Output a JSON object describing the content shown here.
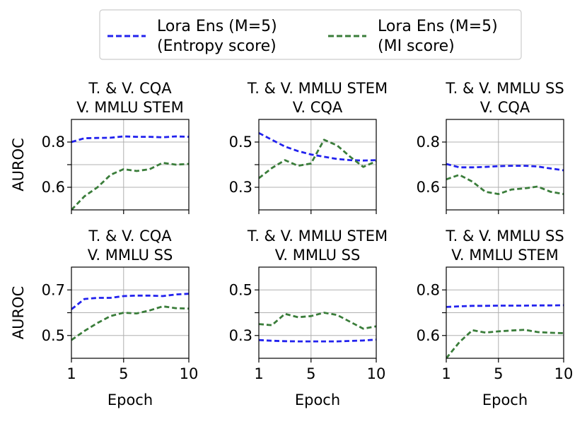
{
  "legend": {
    "placement": "top-center, above subplots",
    "entries": [
      {
        "line1": "Lora Ens (M=5)",
        "line2": "(Entropy score)",
        "color": "#2222ee",
        "style": "dashed"
      },
      {
        "line1": "Lora Ens (M=5)",
        "line2": "(MI score)",
        "color": "#3a7d3a",
        "style": "dashed"
      }
    ]
  },
  "axes_text": {
    "ylabel": "AUROC",
    "xlabel": "Epoch"
  },
  "colors": {
    "entropy": "#2222ee",
    "mi": "#3a7d3a",
    "grid": "#b0b0b0",
    "spine": "#000000"
  },
  "chart_data": [
    {
      "type": "line",
      "title": [
        "T. & V. CQA",
        "V. MMLU STEM"
      ],
      "xlabel": "",
      "ylabel": "AUROC",
      "xlim": [
        1,
        10
      ],
      "ylim": [
        0.5,
        0.9
      ],
      "xticks": [
        1,
        5,
        10
      ],
      "yticks": [
        0.6,
        0.8
      ],
      "yticklabels": [
        "0.6",
        "0.8"
      ],
      "minor_yticks": [
        0.7
      ],
      "grid": true,
      "x": [
        1,
        2,
        3,
        4,
        5,
        6,
        7,
        8,
        9,
        10
      ],
      "series": [
        {
          "name": "Lora Ens (M=5) (Entropy score)",
          "values": [
            0.8,
            0.817,
            0.818,
            0.819,
            0.825,
            0.823,
            0.823,
            0.821,
            0.825,
            0.823
          ]
        },
        {
          "name": "Lora Ens (M=5) (MI score)",
          "values": [
            0.5,
            0.56,
            0.6,
            0.655,
            0.68,
            0.672,
            0.68,
            0.708,
            0.7,
            0.703
          ]
        }
      ]
    },
    {
      "type": "line",
      "title": [
        "T. & V. MMLU STEM",
        "V. CQA"
      ],
      "xlabel": "",
      "ylabel": "",
      "xlim": [
        1,
        10
      ],
      "ylim": [
        0.2,
        0.6
      ],
      "xticks": [
        1,
        5,
        10
      ],
      "yticks": [
        0.3,
        0.5
      ],
      "yticklabels": [
        "0.3",
        "0.5"
      ],
      "minor_yticks": [
        0.4
      ],
      "grid": true,
      "x": [
        1,
        2,
        3,
        4,
        5,
        6,
        7,
        8,
        9,
        10
      ],
      "series": [
        {
          "name": "Lora Ens (M=5) (Entropy score)",
          "values": [
            0.54,
            0.51,
            0.48,
            0.46,
            0.445,
            0.435,
            0.425,
            0.42,
            0.418,
            0.42
          ]
        },
        {
          "name": "Lora Ens (M=5) (MI score)",
          "values": [
            0.34,
            0.385,
            0.42,
            0.395,
            0.405,
            0.51,
            0.485,
            0.435,
            0.39,
            0.415
          ]
        }
      ]
    },
    {
      "type": "line",
      "title": [
        "T. & V. MMLU SS",
        "V. CQA"
      ],
      "xlabel": "",
      "ylabel": "",
      "xlim": [
        1,
        10
      ],
      "ylim": [
        0.5,
        0.9
      ],
      "xticks": [
        1,
        5,
        10
      ],
      "yticks": [
        0.6,
        0.8
      ],
      "yticklabels": [
        "0.6",
        "0.8"
      ],
      "minor_yticks": [
        0.7
      ],
      "grid": true,
      "x": [
        1,
        2,
        3,
        4,
        5,
        6,
        7,
        8,
        9,
        10
      ],
      "series": [
        {
          "name": "Lora Ens (M=5) (Entropy score)",
          "values": [
            0.703,
            0.688,
            0.688,
            0.69,
            0.693,
            0.695,
            0.695,
            0.692,
            0.683,
            0.675
          ]
        },
        {
          "name": "Lora Ens (M=5) (MI score)",
          "values": [
            0.635,
            0.655,
            0.625,
            0.58,
            0.57,
            0.59,
            0.595,
            0.603,
            0.58,
            0.57
          ]
        }
      ]
    },
    {
      "type": "line",
      "title": [
        "T. & V. CQA",
        "V. MMLU SS"
      ],
      "xlabel": "Epoch",
      "ylabel": "AUROC",
      "xlim": [
        1,
        10
      ],
      "ylim": [
        0.4,
        0.8
      ],
      "xticks": [
        1,
        5,
        10
      ],
      "yticks": [
        0.5,
        0.7
      ],
      "yticklabels": [
        "0.5",
        "0.7"
      ],
      "minor_yticks": [
        0.6
      ],
      "grid": true,
      "x": [
        1,
        2,
        3,
        4,
        5,
        6,
        7,
        8,
        9,
        10
      ],
      "series": [
        {
          "name": "Lora Ens (M=5) (Entropy score)",
          "values": [
            0.615,
            0.66,
            0.665,
            0.665,
            0.673,
            0.675,
            0.675,
            0.673,
            0.68,
            0.683
          ]
        },
        {
          "name": "Lora Ens (M=5) (MI score)",
          "values": [
            0.48,
            0.52,
            0.555,
            0.585,
            0.6,
            0.597,
            0.61,
            0.628,
            0.62,
            0.618
          ]
        }
      ]
    },
    {
      "type": "line",
      "title": [
        "T. & V. MMLU STEM",
        "V. MMLU SS"
      ],
      "xlabel": "Epoch",
      "ylabel": "",
      "xlim": [
        1,
        10
      ],
      "ylim": [
        0.2,
        0.6
      ],
      "xticks": [
        1,
        5,
        10
      ],
      "yticks": [
        0.3,
        0.5
      ],
      "yticklabels": [
        "0.3",
        "0.5"
      ],
      "minor_yticks": [
        0.4
      ],
      "grid": true,
      "x": [
        1,
        2,
        3,
        4,
        5,
        6,
        7,
        8,
        9,
        10
      ],
      "series": [
        {
          "name": "Lora Ens (M=5) (Entropy score)",
          "values": [
            0.28,
            0.277,
            0.275,
            0.274,
            0.274,
            0.274,
            0.274,
            0.276,
            0.278,
            0.282
          ]
        },
        {
          "name": "Lora Ens (M=5) (MI score)",
          "values": [
            0.35,
            0.345,
            0.395,
            0.38,
            0.385,
            0.4,
            0.39,
            0.36,
            0.33,
            0.34
          ]
        }
      ]
    },
    {
      "type": "line",
      "title": [
        "T. & V. MMLU SS",
        "V. MMLU STEM"
      ],
      "xlabel": "Epoch",
      "ylabel": "",
      "xlim": [
        1,
        10
      ],
      "ylim": [
        0.5,
        0.9
      ],
      "xticks": [
        1,
        5,
        10
      ],
      "yticks": [
        0.6,
        0.8
      ],
      "yticklabels": [
        "0.6",
        "0.8"
      ],
      "minor_yticks": [
        0.7
      ],
      "grid": true,
      "x": [
        1,
        2,
        3,
        4,
        5,
        6,
        7,
        8,
        9,
        10
      ],
      "series": [
        {
          "name": "Lora Ens (M=5) (Entropy score)",
          "values": [
            0.725,
            0.728,
            0.73,
            0.73,
            0.731,
            0.731,
            0.731,
            0.732,
            0.732,
            0.733
          ]
        },
        {
          "name": "Lora Ens (M=5) (MI score)",
          "values": [
            0.5,
            0.57,
            0.623,
            0.613,
            0.618,
            0.622,
            0.625,
            0.615,
            0.612,
            0.61
          ]
        }
      ]
    }
  ]
}
